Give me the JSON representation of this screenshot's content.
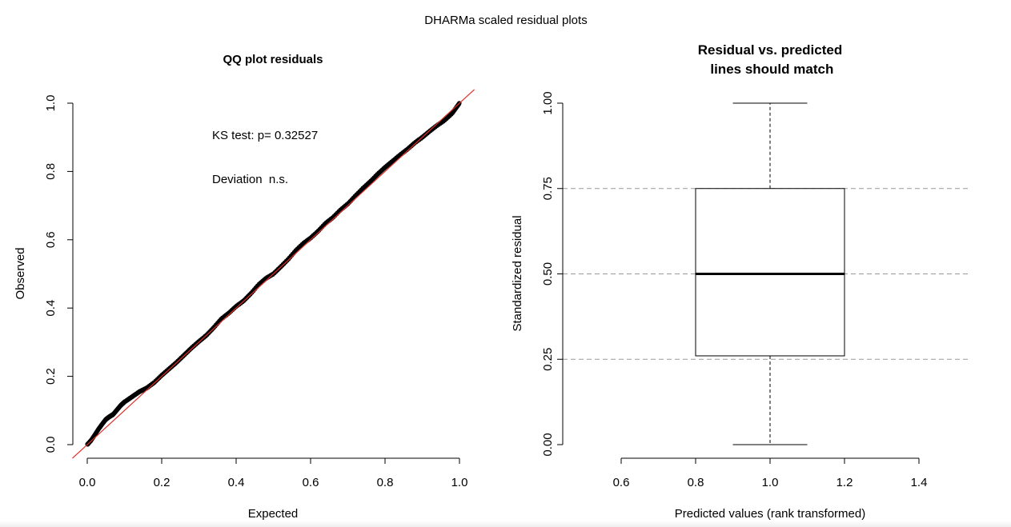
{
  "page_title": "DHARMa scaled residual plots",
  "chart_data": [
    {
      "type": "scatter",
      "title": "QQ plot residuals",
      "xlabel": "Expected",
      "ylabel": "Observed",
      "xlim": [
        0,
        1
      ],
      "ylim": [
        0,
        1
      ],
      "x_ticks": [
        "0.0",
        "0.2",
        "0.4",
        "0.6",
        "0.8",
        "1.0"
      ],
      "y_ticks": [
        "0.0",
        "0.2",
        "0.4",
        "0.6",
        "0.8",
        "1.0"
      ],
      "grid": false,
      "reference_line": {
        "slope": 1,
        "intercept": 0,
        "color": "#e0302a"
      },
      "point_color": "#000000",
      "annotations": [
        "KS test: p= 0.32527",
        "Deviation  n.s."
      ],
      "points": [
        [
          0.0,
          0.0
        ],
        [
          0.01,
          0.012
        ],
        [
          0.02,
          0.028
        ],
        [
          0.03,
          0.045
        ],
        [
          0.04,
          0.06
        ],
        [
          0.05,
          0.074
        ],
        [
          0.06,
          0.082
        ],
        [
          0.07,
          0.089
        ],
        [
          0.08,
          0.102
        ],
        [
          0.09,
          0.115
        ],
        [
          0.1,
          0.125
        ],
        [
          0.12,
          0.14
        ],
        [
          0.14,
          0.155
        ],
        [
          0.16,
          0.166
        ],
        [
          0.18,
          0.182
        ],
        [
          0.2,
          0.203
        ],
        [
          0.22,
          0.222
        ],
        [
          0.24,
          0.241
        ],
        [
          0.26,
          0.262
        ],
        [
          0.28,
          0.283
        ],
        [
          0.3,
          0.302
        ],
        [
          0.32,
          0.32
        ],
        [
          0.34,
          0.343
        ],
        [
          0.36,
          0.368
        ],
        [
          0.38,
          0.385
        ],
        [
          0.4,
          0.405
        ],
        [
          0.42,
          0.421
        ],
        [
          0.44,
          0.443
        ],
        [
          0.46,
          0.468
        ],
        [
          0.48,
          0.487
        ],
        [
          0.5,
          0.5
        ],
        [
          0.52,
          0.521
        ],
        [
          0.54,
          0.543
        ],
        [
          0.56,
          0.568
        ],
        [
          0.58,
          0.589
        ],
        [
          0.6,
          0.605
        ],
        [
          0.62,
          0.625
        ],
        [
          0.64,
          0.648
        ],
        [
          0.66,
          0.665
        ],
        [
          0.68,
          0.687
        ],
        [
          0.7,
          0.705
        ],
        [
          0.72,
          0.728
        ],
        [
          0.74,
          0.75
        ],
        [
          0.76,
          0.77
        ],
        [
          0.78,
          0.792
        ],
        [
          0.8,
          0.812
        ],
        [
          0.82,
          0.83
        ],
        [
          0.84,
          0.848
        ],
        [
          0.86,
          0.865
        ],
        [
          0.88,
          0.884
        ],
        [
          0.9,
          0.9
        ],
        [
          0.92,
          0.918
        ],
        [
          0.94,
          0.935
        ],
        [
          0.96,
          0.95
        ],
        [
          0.98,
          0.97
        ],
        [
          0.99,
          0.985
        ],
        [
          1.0,
          1.0
        ]
      ]
    },
    {
      "type": "box",
      "title": "Residual vs. predicted\n lines should match",
      "xlabel": "Predicted values (rank transformed)",
      "ylabel": "Standardized residual",
      "xlim": [
        0.6,
        1.4
      ],
      "ylim": [
        0,
        1
      ],
      "x_ticks": [
        "0.6",
        "0.8",
        "1.0",
        "1.2",
        "1.4"
      ],
      "y_ticks": [
        "0.00",
        "0.25",
        "0.50",
        "0.75",
        "1.00"
      ],
      "reference_lines": [
        0.25,
        0.5,
        0.75
      ],
      "box": {
        "x": 1.0,
        "width": 0.4,
        "min": 0.0,
        "q1": 0.26,
        "median": 0.5,
        "q3": 0.75,
        "max": 1.0
      }
    }
  ]
}
